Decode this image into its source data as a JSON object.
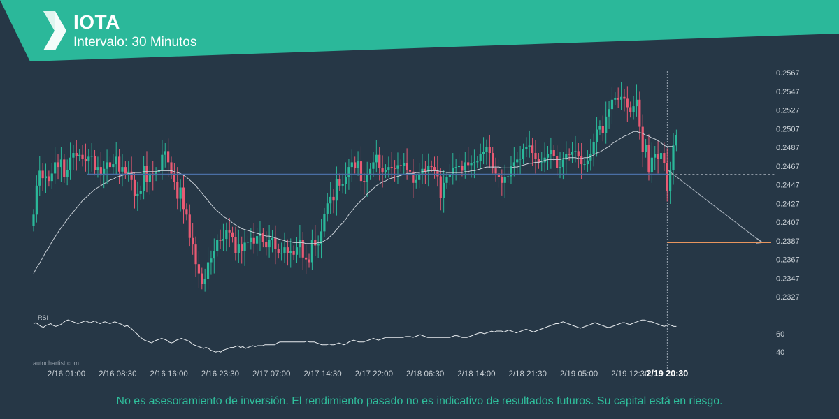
{
  "header": {
    "symbol": "IOTA",
    "interval_label": "Intervalo: 30 Minutos",
    "banner_color": "#2bb89a"
  },
  "disclaimer": "No es asesoramiento de inversión. El rendimiento pasado no es indicativo de resultados futuros. Su capital está en riesgo.",
  "watermark": "autochartist.com",
  "chart_data": [
    {
      "type": "candlestick",
      "title": "IOTA",
      "ylim": [
        0.2313,
        0.2572
      ],
      "y_ticks": [
        "0.2567",
        "0.2547",
        "0.2527",
        "0.2507",
        "0.2487",
        "0.2467",
        "0.2447",
        "0.2427",
        "0.2407",
        "0.2387",
        "0.2367",
        "0.2347",
        "0.2327"
      ],
      "x_ticks": [
        "2/16 01:00",
        "2/16 08:30",
        "2/16 16:00",
        "2/16 23:30",
        "2/17 07:00",
        "2/17 14:30",
        "2/17 22:00",
        "2/18 06:30",
        "2/18 14:00",
        "2/18 21:30",
        "2/19 05:00",
        "2/19 12:30"
      ],
      "current_time_label": "2/19 20:30",
      "colors": {
        "up": "#2bb89a",
        "down": "#e95a73",
        "support": "#4a6fa5",
        "ma": "#c8cfd6",
        "target": "#e8955e",
        "projection": "#aab4be"
      },
      "support_level": 0.2458,
      "forecast_target": 0.2385,
      "closes": [
        0.2415,
        0.2446,
        0.2462,
        0.2454,
        0.2456,
        0.2451,
        0.2459,
        0.2471,
        0.2466,
        0.2474,
        0.2455,
        0.2463,
        0.2476,
        0.2481,
        0.2478,
        0.2479,
        0.2475,
        0.2472,
        0.2477,
        0.2478,
        0.2463,
        0.2466,
        0.2457,
        0.2464,
        0.2471,
        0.2466,
        0.2469,
        0.2477,
        0.2461,
        0.2466,
        0.2459,
        0.2461,
        0.2452,
        0.2435,
        0.2437,
        0.244,
        0.2467,
        0.245,
        0.2459,
        0.2457,
        0.246,
        0.2463,
        0.2479,
        0.2483,
        0.2471,
        0.2459,
        0.245,
        0.2432,
        0.2444,
        0.2421,
        0.2415,
        0.239,
        0.2383,
        0.2362,
        0.2352,
        0.2341,
        0.2346,
        0.2364,
        0.2368,
        0.2376,
        0.2388,
        0.2387,
        0.2389,
        0.2398,
        0.2396,
        0.2391,
        0.2374,
        0.2383,
        0.2376,
        0.2385,
        0.2386,
        0.239,
        0.2384,
        0.2392,
        0.2395,
        0.2386,
        0.238,
        0.2388,
        0.239,
        0.2378,
        0.2374,
        0.2374,
        0.238,
        0.2374,
        0.2376,
        0.2372,
        0.238,
        0.2388,
        0.2369,
        0.2367,
        0.2364,
        0.2388,
        0.2382,
        0.2384,
        0.2397,
        0.2416,
        0.2427,
        0.2434,
        0.243,
        0.2453,
        0.2446,
        0.2448,
        0.2455,
        0.2466,
        0.2471,
        0.2465,
        0.2472,
        0.2451,
        0.245,
        0.2458,
        0.2464,
        0.2471,
        0.2479,
        0.2465,
        0.246,
        0.2463,
        0.2466,
        0.2465,
        0.2464,
        0.2468,
        0.2467,
        0.247,
        0.2463,
        0.2461,
        0.2449,
        0.2452,
        0.2459,
        0.2464,
        0.2461,
        0.2467,
        0.2466,
        0.2462,
        0.2456,
        0.2433,
        0.2449,
        0.2455,
        0.2458,
        0.2465,
        0.2466,
        0.2467,
        0.2462,
        0.2471,
        0.2468,
        0.247,
        0.2471,
        0.2472,
        0.248,
        0.2482,
        0.2487,
        0.2481,
        0.2465,
        0.2459,
        0.2455,
        0.2449,
        0.2455,
        0.2456,
        0.2467,
        0.2471,
        0.2474,
        0.2475,
        0.2485,
        0.2487,
        0.2489,
        0.2481,
        0.2475,
        0.247,
        0.2471,
        0.2476,
        0.248,
        0.2484,
        0.2478,
        0.2465,
        0.2466,
        0.2474,
        0.248,
        0.2479,
        0.2482,
        0.2483,
        0.2478,
        0.2469,
        0.2469,
        0.2473,
        0.248,
        0.2493,
        0.2506,
        0.251,
        0.2502,
        0.252,
        0.2528,
        0.2538,
        0.254,
        0.2538,
        0.2541,
        0.2539,
        0.253,
        0.2525,
        0.2531,
        0.2538,
        0.2509,
        0.2482,
        0.249,
        0.246,
        0.2476,
        0.248,
        0.2475,
        0.2481,
        0.247,
        0.244,
        0.2463,
        0.2489,
        0.25
      ],
      "ma_values": [
        0.2352,
        0.2358,
        0.2363,
        0.2369,
        0.2375,
        0.238,
        0.2386,
        0.2391,
        0.2396,
        0.2401,
        0.2405,
        0.241,
        0.2414,
        0.2418,
        0.2422,
        0.2426,
        0.243,
        0.2433,
        0.2436,
        0.2439,
        0.2442,
        0.2444,
        0.2446,
        0.2448,
        0.245,
        0.2452,
        0.2453,
        0.2455,
        0.2456,
        0.2457,
        0.2458,
        0.2459,
        0.2459,
        0.246,
        0.246,
        0.246,
        0.2461,
        0.2461,
        0.2461,
        0.2461,
        0.2461,
        0.2462,
        0.2462,
        0.2462,
        0.2462,
        0.2462,
        0.2461,
        0.246,
        0.2459,
        0.2457,
        0.2455,
        0.2452,
        0.2449,
        0.2446,
        0.2442,
        0.2438,
        0.2434,
        0.243,
        0.2426,
        0.2422,
        0.2419,
        0.2416,
        0.2413,
        0.2411,
        0.2409,
        0.2406,
        0.2404,
        0.2402,
        0.24,
        0.2399,
        0.2398,
        0.2397,
        0.2396,
        0.2395,
        0.2394,
        0.2393,
        0.2392,
        0.2392,
        0.2391,
        0.239,
        0.2389,
        0.2388,
        0.2387,
        0.2386,
        0.2386,
        0.2385,
        0.2385,
        0.2385,
        0.2385,
        0.2384,
        0.2384,
        0.2384,
        0.2384,
        0.2385,
        0.2385,
        0.2387,
        0.2389,
        0.2392,
        0.2395,
        0.2399,
        0.2403,
        0.2406,
        0.241,
        0.2415,
        0.2419,
        0.2423,
        0.2427,
        0.243,
        0.2433,
        0.2437,
        0.244,
        0.2443,
        0.2446,
        0.2448,
        0.245,
        0.2451,
        0.2453,
        0.2454,
        0.2455,
        0.2456,
        0.2457,
        0.2458,
        0.2459,
        0.2459,
        0.2459,
        0.246,
        0.246,
        0.2461,
        0.2461,
        0.2462,
        0.2462,
        0.2462,
        0.2462,
        0.2461,
        0.2461,
        0.246,
        0.246,
        0.246,
        0.246,
        0.246,
        0.246,
        0.2461,
        0.2461,
        0.2462,
        0.2462,
        0.2463,
        0.2464,
        0.2465,
        0.2466,
        0.2466,
        0.2466,
        0.2466,
        0.2466,
        0.2465,
        0.2465,
        0.2465,
        0.2465,
        0.2466,
        0.2466,
        0.2467,
        0.2468,
        0.2469,
        0.247,
        0.247,
        0.2471,
        0.2471,
        0.2472,
        0.2473,
        0.2474,
        0.2474,
        0.2474,
        0.2474,
        0.2474,
        0.2475,
        0.2475,
        0.2476,
        0.2476,
        0.2476,
        0.2475,
        0.2475,
        0.2476,
        0.2476,
        0.2477,
        0.2479,
        0.2481,
        0.2482,
        0.2484,
        0.2486,
        0.2488,
        0.2491,
        0.2493,
        0.2495,
        0.2497,
        0.2499,
        0.25,
        0.2502,
        0.2504,
        0.2504,
        0.2503,
        0.2502,
        0.25,
        0.2499,
        0.2497,
        0.2496,
        0.2494,
        0.2492,
        0.2489,
        0.2488,
        0.2488,
        0.2488
      ]
    },
    {
      "type": "line",
      "title": "RSI",
      "ylim": [
        28,
        82
      ],
      "y_ticks": [
        40,
        60
      ],
      "values": [
        71,
        72,
        70,
        68,
        67,
        69,
        70,
        71,
        69,
        68,
        69,
        70,
        72,
        74,
        75,
        74,
        73,
        72,
        71,
        72,
        73,
        74,
        73,
        72,
        73,
        74,
        72,
        71,
        72,
        73,
        72,
        71,
        72,
        73,
        72,
        71,
        70,
        68,
        69,
        67,
        65,
        62,
        60,
        57,
        55,
        53,
        52,
        51,
        50,
        52,
        53,
        54,
        55,
        54,
        53,
        51,
        50,
        51,
        53,
        54,
        55,
        54,
        53,
        52,
        50,
        48,
        47,
        46,
        45,
        44,
        45,
        44,
        42,
        41,
        40,
        41,
        40,
        42,
        43,
        44,
        45,
        45,
        46,
        47,
        45,
        46,
        44,
        45,
        46,
        47,
        46,
        47,
        47,
        47,
        48,
        48,
        48,
        48,
        48,
        50,
        51,
        51,
        51,
        51,
        51,
        51,
        51,
        51,
        51,
        51,
        51,
        52,
        51,
        51,
        51,
        50,
        49,
        48,
        48,
        48,
        49,
        48,
        48,
        49,
        50,
        49,
        48,
        49,
        51,
        52,
        53,
        52,
        51,
        51,
        51,
        52,
        53,
        54,
        55,
        54,
        53,
        54,
        55,
        56,
        56,
        56,
        56,
        56,
        56,
        56,
        56,
        57,
        57,
        57,
        56,
        57,
        58,
        59,
        58,
        57,
        56,
        56,
        56,
        56,
        56,
        56,
        56,
        56,
        56,
        56,
        57,
        58,
        58,
        57,
        56,
        56,
        56,
        57,
        58,
        59,
        60,
        61,
        61,
        60,
        61,
        62,
        63,
        62,
        63,
        63,
        63,
        62,
        63,
        64,
        63,
        62,
        61,
        62,
        63,
        64,
        65,
        64,
        63,
        62,
        63,
        64,
        65,
        66,
        67,
        68,
        69,
        70,
        71,
        71,
        72,
        73,
        72,
        71,
        70,
        69,
        68,
        67,
        66,
        67,
        68,
        69,
        70,
        71,
        72,
        71,
        70,
        69,
        68,
        67,
        67,
        68,
        69,
        70,
        71,
        72,
        72,
        71,
        70,
        71,
        72,
        73,
        74,
        75,
        75,
        74,
        73,
        73,
        72,
        71,
        70,
        69,
        68,
        69,
        70,
        69,
        68,
        68
      ]
    }
  ]
}
